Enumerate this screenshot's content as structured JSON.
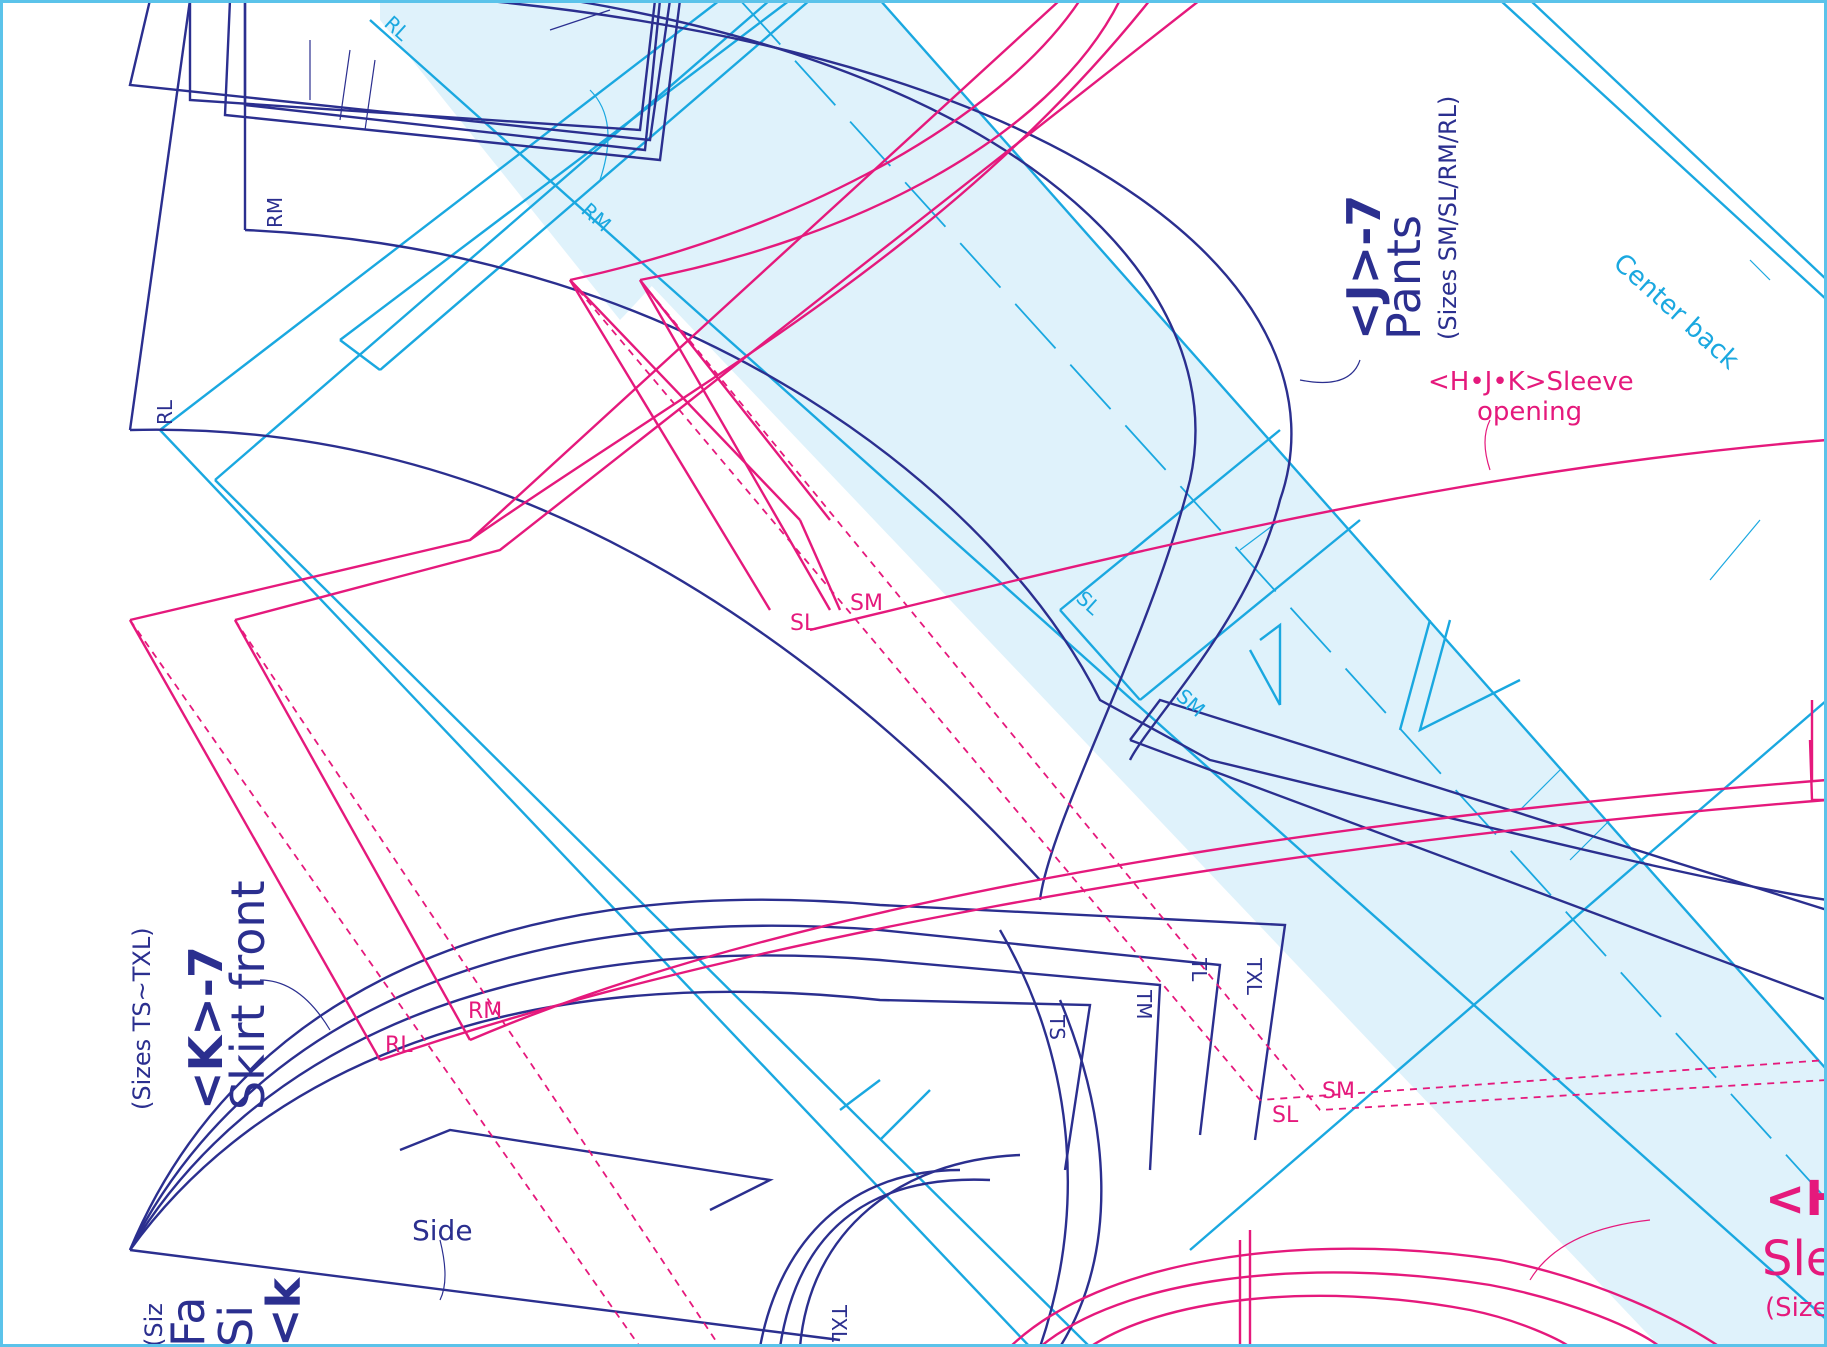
{
  "colors": {
    "navy": "#2b2f8f",
    "cyan": "#1aa8e0",
    "magenta": "#e5197c",
    "band_fill": "#dff2fb",
    "frame": "#5bc3ea"
  },
  "pieces": {
    "pants": {
      "code": "<J>-7",
      "name": "Pants",
      "sizes": "(Sizes SM/SL/RM/RL)"
    },
    "skirt_front": {
      "code": "<K>-7",
      "name": "Skirt front",
      "sizes": "(Sizes TS~TXL)"
    },
    "sleeve": {
      "code": "<H",
      "name": "Sle",
      "sizes": "(Size"
    },
    "partial_bottom": {
      "code": "<k",
      "line1": "Si",
      "line2": "Fa",
      "sizes": "(Siz"
    }
  },
  "annotations": {
    "center_back": "Center back",
    "sleeve_opening_line1": "<H•J•K>Sleeve",
    "sleeve_opening_line2": "opening",
    "side": "Side"
  },
  "size_labels": {
    "rl_top": "RL",
    "rm_top": "RM",
    "rm_left": "RM",
    "rl_left": "RL",
    "sl_mid": "SL",
    "sm_mid": "SM",
    "sl_cyan": "SL",
    "sm_cyan": "SM",
    "rm_pink": "RM",
    "rl_pink": "RL",
    "ts": "TS",
    "tm": "TM",
    "tl": "TL",
    "txl": "TXL",
    "sm_bottom": "SM",
    "sl_bottom": "SL",
    "txl_bottom": "TXL"
  }
}
